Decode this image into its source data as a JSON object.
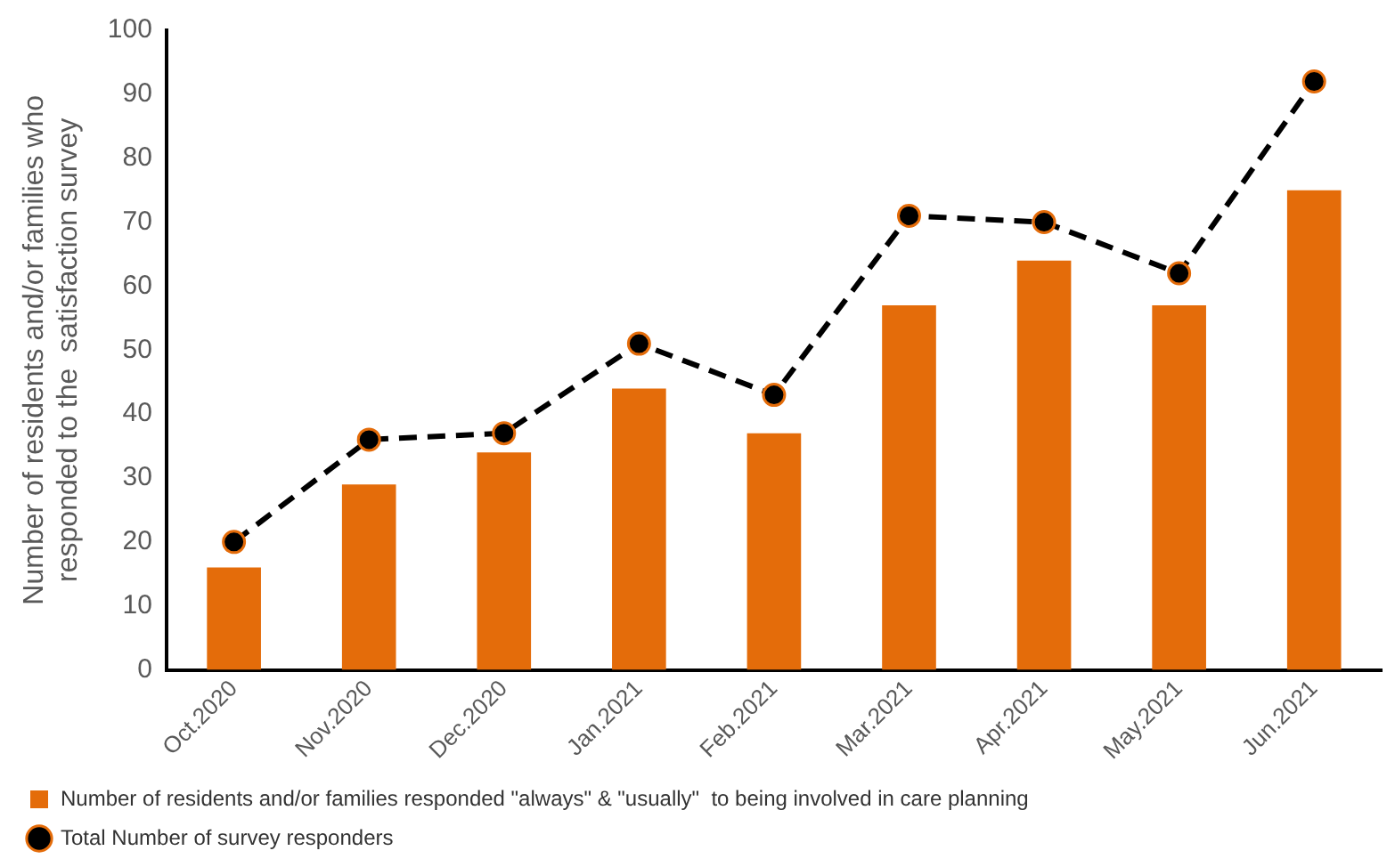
{
  "chart_data": {
    "type": "bar",
    "ylabel": "Number of residents and/or families who responded to the  satisfaction survey",
    "categories": [
      "Oct.2020",
      "Nov.2020",
      "Dec.2020",
      "Jan.2021",
      "Feb.2021",
      "Mar.2021",
      "Apr.2021",
      "May.2021",
      "Jun.2021"
    ],
    "series": [
      {
        "name": "Number of residents and/or families responded \"always\" & \"usually\"  to being involved in care planning",
        "color": "#e46c0a",
        "values": [
          16,
          29,
          34,
          44,
          37,
          57,
          64,
          57,
          75
        ]
      },
      {
        "name": "Total Number of survey responders",
        "type": "line",
        "color": "#000000",
        "marker": "circle",
        "line_style": "dashed",
        "values": [
          20,
          36,
          37,
          51,
          43,
          71,
          70,
          62,
          92
        ]
      }
    ],
    "ylim": [
      0,
      100
    ],
    "yticks": [
      0,
      10,
      20,
      30,
      40,
      50,
      60,
      70,
      80,
      90,
      100
    ],
    "grid": false,
    "legend": "bottom"
  }
}
